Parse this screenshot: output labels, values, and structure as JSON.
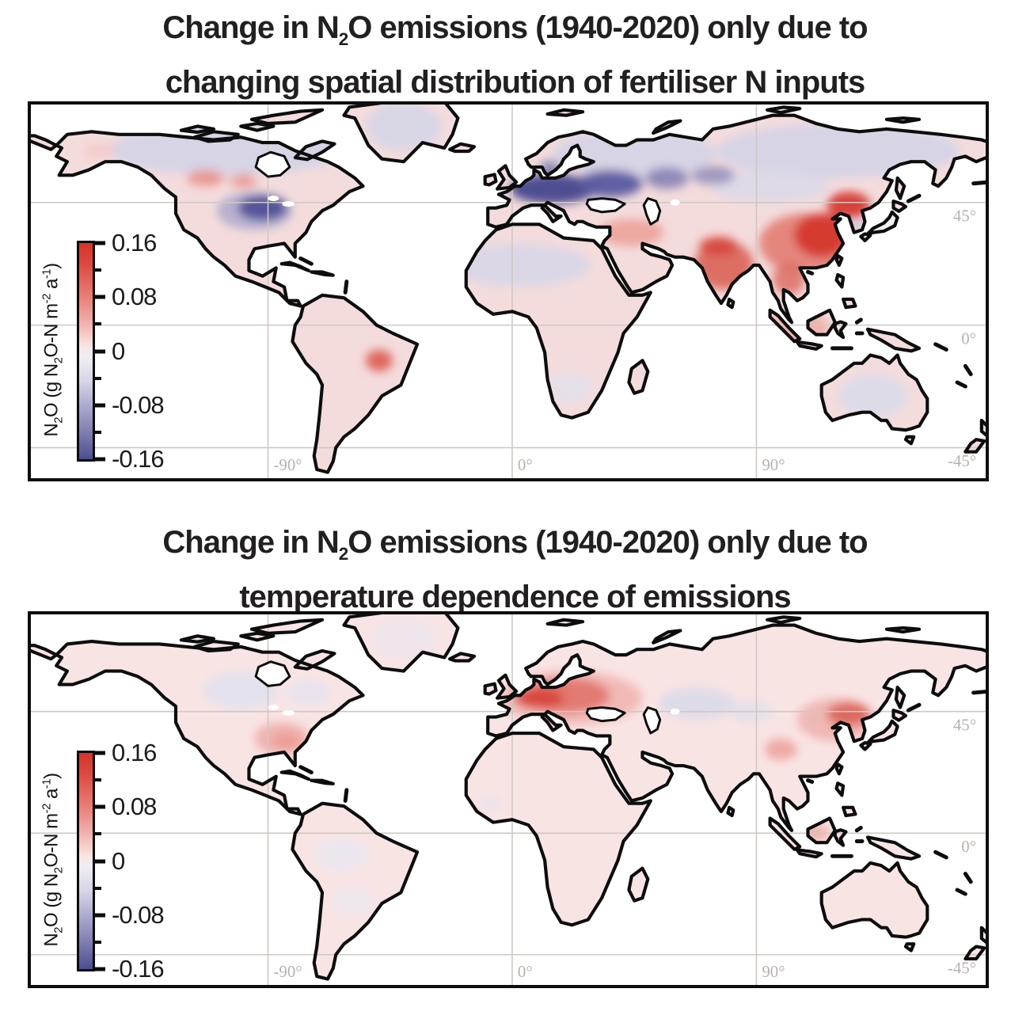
{
  "figure": {
    "panels": [
      {
        "id": "fertiliser",
        "title": {
          "pre": "Change in N",
          "sub": "2",
          "post": "O emissions (1940-2020) only due to",
          "line2": "changing spatial distribution of fertiliser N inputs"
        },
        "base_land_color": "#f4dcdc",
        "regions": [
          {
            "name": "north-america-arctic-band",
            "lon": -105,
            "lat": 64,
            "rlon": 45,
            "rlat": 9,
            "color": "#d7d4e5",
            "opacity": 1
          },
          {
            "name": "greenland-lavender",
            "lon": -40,
            "lat": 73,
            "rlon": 14,
            "rlat": 9,
            "color": "#d9d6e6",
            "opacity": 1
          },
          {
            "name": "eurasia-arctic-band-west",
            "lon": 45,
            "lat": 63,
            "rlon": 30,
            "rlat": 9,
            "color": "#d7d4e5",
            "opacity": 1
          },
          {
            "name": "eurasia-arctic-band-east",
            "lon": 120,
            "lat": 64,
            "rlon": 45,
            "rlat": 10,
            "color": "#d7d4e5",
            "opacity": 1
          },
          {
            "name": "central-asia-gray",
            "lon": 95,
            "lat": 51,
            "rlon": 22,
            "rlat": 6,
            "color": "#dcd9e8",
            "opacity": 0.9
          },
          {
            "name": "alaska-pink-spot",
            "lon": -152,
            "lat": 64,
            "rlon": 6,
            "rlat": 3,
            "color": "#f3cbca",
            "opacity": 0.9
          },
          {
            "name": "canada-prairie-red-west",
            "lon": -113,
            "lat": 54,
            "rlon": 7,
            "rlat": 3,
            "color": "#e8837b",
            "opacity": 0.75
          },
          {
            "name": "canada-prairie-red-east",
            "lon": -99,
            "lat": 53,
            "rlon": 5,
            "rlat": 2.5,
            "color": "#e8837b",
            "opacity": 0.7
          },
          {
            "name": "sahara-lavender",
            "lon": 3,
            "lat": 22,
            "rlon": 26,
            "rlat": 8,
            "color": "#dbd7e6",
            "opacity": 1
          },
          {
            "name": "southern-africa-lavender",
            "lon": 21,
            "lat": -23,
            "rlon": 8,
            "rlat": 6,
            "color": "#e3e0ec",
            "opacity": 0.85
          },
          {
            "name": "australia-lavender",
            "lon": 133,
            "lat": -26,
            "rlon": 13,
            "rlat": 8,
            "color": "#dedbe9",
            "opacity": 1
          },
          {
            "name": "us-midwest-fringe",
            "lon": -95,
            "lat": 42,
            "rlon": 14,
            "rlat": 7,
            "color": "#a3a2cb",
            "opacity": 0.75
          },
          {
            "name": "us-midwest-core",
            "lon": -92,
            "lat": 43,
            "rlon": 9,
            "rlat": 4.5,
            "color": "#55539a",
            "opacity": 1
          },
          {
            "name": "europe-dark-core",
            "lon": 15,
            "lat": 50,
            "rlon": 16,
            "rlat": 5.5,
            "color": "#4f4d92",
            "opacity": 1
          },
          {
            "name": "europe-dark-east",
            "lon": 36,
            "lat": 52,
            "rlon": 12,
            "rlat": 5,
            "color": "#5a58a0",
            "opacity": 0.95
          },
          {
            "name": "ural-purple",
            "lon": 57,
            "lat": 54,
            "rlon": 8,
            "rlat": 4,
            "color": "#8583b5",
            "opacity": 0.9
          },
          {
            "name": "west-siberia-purple",
            "lon": 74,
            "lat": 55,
            "rlon": 8,
            "rlat": 3.5,
            "color": "#8c8ab9",
            "opacity": 0.8
          },
          {
            "name": "scandinavia-south-blue",
            "lon": 14,
            "lat": 58,
            "rlon": 4,
            "rlat": 2.5,
            "color": "#7a79ad",
            "opacity": 0.8
          },
          {
            "name": "middle-east-pink",
            "lon": 44,
            "lat": 34,
            "rlon": 12,
            "rlat": 5,
            "color": "#eca29b",
            "opacity": 0.9
          },
          {
            "name": "india-red",
            "lon": 78,
            "lat": 22,
            "rlon": 11,
            "rlat": 9,
            "color": "#dd6e64",
            "opacity": 1
          },
          {
            "name": "india-core-red",
            "lon": 76,
            "lat": 29,
            "rlon": 7,
            "rlat": 3.5,
            "color": "#d6453c",
            "opacity": 0.9
          },
          {
            "name": "china-red-fringe",
            "lon": 108,
            "lat": 30,
            "rlon": 17,
            "rlat": 11,
            "color": "#e2776d",
            "opacity": 0.85
          },
          {
            "name": "china-red-core",
            "lon": 114,
            "lat": 33,
            "rlon": 10,
            "rlat": 8,
            "color": "#d63a31",
            "opacity": 1
          },
          {
            "name": "northeast-china-red",
            "lon": 124,
            "lat": 44,
            "rlon": 8,
            "rlat": 5,
            "color": "#d63a31",
            "opacity": 0.95
          },
          {
            "name": "indochina-red",
            "lon": 102,
            "lat": 17,
            "rlon": 6,
            "rlat": 6,
            "color": "#dd6e64",
            "opacity": 0.85
          },
          {
            "name": "indonesia-pink",
            "lon": 105,
            "lat": -1,
            "rlon": 12,
            "rlat": 6,
            "color": "#eeaaa4",
            "opacity": 0.85
          },
          {
            "name": "japan-neutral",
            "lon": 138,
            "lat": 38,
            "rlon": 5,
            "rlat": 5,
            "color": "#f2f2f7",
            "opacity": 0.9
          },
          {
            "name": "korea-blue-dot",
            "lon": 127.5,
            "lat": 36.5,
            "rlon": 2.5,
            "rlat": 2,
            "color": "#b9c4de",
            "opacity": 0.8
          },
          {
            "name": "brazil-red-spot",
            "lon": -49,
            "lat": -13,
            "rlon": 5,
            "rlat": 4,
            "color": "#e0675e",
            "opacity": 1
          }
        ]
      },
      {
        "id": "temperature",
        "title": {
          "pre": "Change in N",
          "sub": "2",
          "post": "O emissions (1940-2020) only due to",
          "line2": "temperature dependence of emissions"
        },
        "base_land_color": "#f9e4e4",
        "regions": [
          {
            "name": "north-america-central-lavender",
            "lon": -100,
            "lat": 53,
            "rlon": 14,
            "rlat": 7,
            "color": "#e3e1ee",
            "opacity": 0.95
          },
          {
            "name": "canada-east-lavender",
            "lon": -75,
            "lat": 52,
            "rlon": 8,
            "rlat": 5,
            "color": "#e6e4f0",
            "opacity": 0.8
          },
          {
            "name": "greenland-lavender",
            "lon": -40,
            "lat": 72,
            "rlon": 12,
            "rlat": 8,
            "color": "#e8e6f1",
            "opacity": 0.6
          },
          {
            "name": "us-southeast-red",
            "lon": -85,
            "lat": 35,
            "rlon": 10,
            "rlat": 6,
            "color": "#efb0ac",
            "opacity": 0.95
          },
          {
            "name": "us-southeast-core",
            "lon": -83,
            "lat": 34,
            "rlon": 5,
            "rlat": 3,
            "color": "#eb9a95",
            "opacity": 0.9
          },
          {
            "name": "south-america-north-lavender",
            "lon": -63,
            "lat": -8,
            "rlon": 10,
            "rlat": 6,
            "color": "#eae7f1",
            "opacity": 0.85
          },
          {
            "name": "south-america-south-lavender",
            "lon": -59,
            "lat": -25,
            "rlon": 8,
            "rlat": 5,
            "color": "#ebe8f2",
            "opacity": 0.75
          },
          {
            "name": "west-africa-lavender",
            "lon": -8,
            "lat": 11,
            "rlon": 4,
            "rlat": 2.5,
            "color": "#e6e3ef",
            "opacity": 0.85
          },
          {
            "name": "kazakhstan-lavender",
            "lon": 68,
            "lat": 48,
            "rlon": 14,
            "rlat": 6,
            "color": "#dedbe9",
            "opacity": 1
          },
          {
            "name": "xinjiang-lavender",
            "lon": 88,
            "lat": 45,
            "rlon": 8,
            "rlat": 4,
            "color": "#e2dfec",
            "opacity": 0.85
          },
          {
            "name": "europe-red-halo",
            "lon": 22,
            "lat": 50,
            "rlon": 26,
            "rlat": 10,
            "color": "#f0b3ae",
            "opacity": 0.85
          },
          {
            "name": "europe-red-mid",
            "lon": 20,
            "lat": 51,
            "rlon": 16,
            "rlat": 6.5,
            "color": "#e2776e",
            "opacity": 0.95
          },
          {
            "name": "europe-red-core",
            "lon": 10,
            "lat": 50,
            "rlon": 9,
            "rlat": 4,
            "color": "#d84a41",
            "opacity": 1
          },
          {
            "name": "northeast-china-halo",
            "lon": 119,
            "lat": 42,
            "rlon": 14,
            "rlat": 8,
            "color": "#efb0ab",
            "opacity": 0.85
          },
          {
            "name": "northeast-china-core",
            "lon": 124,
            "lat": 44,
            "rlon": 8,
            "rlat": 4.5,
            "color": "#dd6a60",
            "opacity": 1
          },
          {
            "name": "tibet-sichuan-red",
            "lon": 99,
            "lat": 31,
            "rlon": 6,
            "rlat": 4,
            "color": "#e8928b",
            "opacity": 0.7
          },
          {
            "name": "borneo-red",
            "lon": 112,
            "lat": 0,
            "rlon": 5,
            "rlat": 3,
            "color": "#eba49e",
            "opacity": 0.8
          }
        ]
      }
    ],
    "colorbar": {
      "label_parts": {
        "p1": "N",
        "s1": "2",
        "p2": "O (g N",
        "s2": "2",
        "p3": "O-N m",
        "sup1": "-2",
        "p4": " a",
        "sup2": "-1",
        "p5": ")"
      },
      "major_ticks": [
        "0.16",
        "0.08",
        "0",
        "-0.08",
        "-0.16"
      ],
      "value_range": {
        "min": -0.16,
        "max": 0.16
      },
      "gradient_stops": [
        "#d6332a 0%",
        "#dd4a42 10%",
        "#e87b73 24%",
        "#f2b5b1 38%",
        "#f8e6e5 48%",
        "#efedf3 53%",
        "#d6d4e6 64%",
        "#a9a8ce 76%",
        "#7d7caf 88%",
        "#4c4e90 100%"
      ]
    },
    "axes": {
      "lat_labels": [
        {
          "text": "45°",
          "lat": 45
        },
        {
          "text": "0°",
          "lat": 0
        },
        {
          "text": "-45°",
          "lat": -45
        }
      ],
      "lon_labels": [
        {
          "text": "-90°",
          "lon": -90
        },
        {
          "text": "0°",
          "lon": 0
        },
        {
          "text": "90°",
          "lon": 90
        }
      ]
    },
    "colors": {
      "ocean": "#ffffff",
      "coastline": "#0d0d0d",
      "gridline": "#cfc8c2",
      "axis_label_text": "#b7b2ae",
      "tick_text": "#1d1b1c",
      "title_text": "#221f20"
    }
  },
  "map_data": {
    "type": "choropleth-anomaly-maps",
    "units": "g N2O-N m-2 a-1",
    "colormap": "red = increase, blue = decrease, diverging about 0, range -0.16 to 0.16",
    "panels": [
      {
        "title": "Change in N2O emissions (1940-2020) only due to changing spatial distribution of fertiliser N inputs",
        "notable_increases": [
          "eastern China",
          "India",
          "Southeast Asia",
          "Middle East",
          "Canadian prairies",
          "southeast Brazil"
        ],
        "notable_decreases": [
          "western and central Europe",
          "US Midwest corn belt",
          "western Russia"
        ],
        "weak_background": "light pink (small positive) over most land, pale lavender (small negative) at high northern latitudes, Sahara and central Australia"
      },
      {
        "title": "Change in N2O emissions (1940-2020) only due to temperature dependence of emissions",
        "notable_increases": [
          "central Europe",
          "northeastern China",
          "southeastern United States",
          "weak increase over most land"
        ],
        "notable_decreases": [
          "central Canada (weak)",
          "Kazakhstan and central Asia (weak)",
          "parts of South America (weak)"
        ],
        "weak_background": "very light pink (small positive) over most land"
      }
    ]
  }
}
